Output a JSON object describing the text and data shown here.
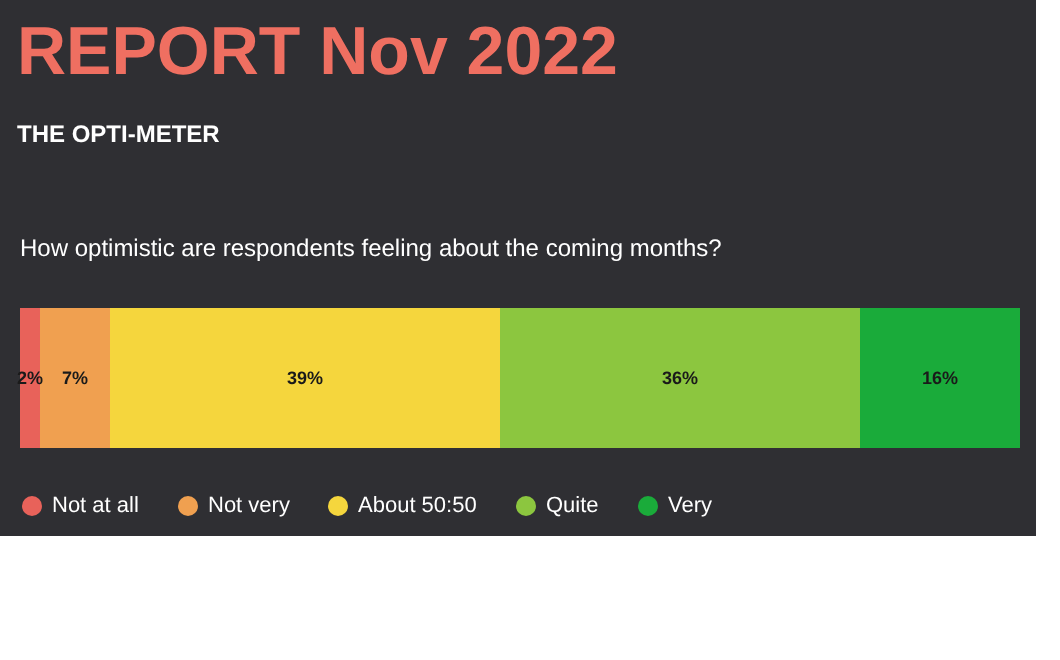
{
  "chart_data": {
    "type": "bar",
    "title": "REPORT Nov 2022",
    "subtitle": "THE OPTI-METER",
    "annotations": [
      "How optimistic are respondents feeling about the coming months?"
    ],
    "orientation": "horizontal",
    "stacked": true,
    "legend": "bottom",
    "categories": [
      null
    ],
    "series": [
      {
        "name": "Not at all",
        "color": "#e8625a",
        "values": [
          2
        ],
        "value_labels": [
          "2%"
        ]
      },
      {
        "name": "Not very",
        "color": "#f0a050",
        "values": [
          7
        ],
        "value_labels": [
          "7%"
        ]
      },
      {
        "name": "About 50:50",
        "color": "#f5d63d",
        "values": [
          39
        ],
        "value_labels": [
          "39%"
        ]
      },
      {
        "name": "Quite",
        "color": "#8cc63f",
        "values": [
          36
        ],
        "value_labels": [
          "36%"
        ]
      },
      {
        "name": "Very",
        "color": "#1aab3a",
        "values": [
          16
        ],
        "value_labels": [
          "16%"
        ]
      }
    ]
  }
}
